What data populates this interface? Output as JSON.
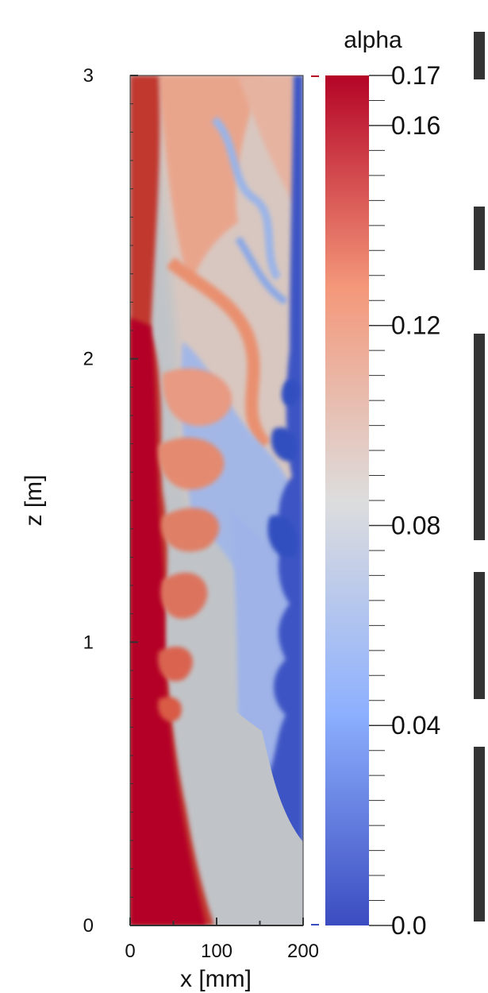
{
  "chart_data": {
    "type": "heatmap",
    "title": "",
    "colorbar": {
      "label": "alpha",
      "range": [
        0.0,
        0.17
      ],
      "ticks": [
        {
          "value": 0.17,
          "label": "0.17"
        },
        {
          "value": 0.16,
          "label": "0.16"
        },
        {
          "value": 0.12,
          "label": "0.12"
        },
        {
          "value": 0.08,
          "label": "0.08"
        },
        {
          "value": 0.04,
          "label": "0.04"
        },
        {
          "value": 0.0,
          "label": "0.0"
        }
      ],
      "colormap": [
        "#3b4cc0",
        "#8db0fe",
        "#dddddd",
        "#f4987a",
        "#b40426"
      ]
    },
    "xaxis": {
      "label": "x [mm]",
      "range": [
        0,
        200
      ],
      "ticks": [
        {
          "value": 0,
          "label": "0"
        },
        {
          "value": 100,
          "label": "100"
        },
        {
          "value": 200,
          "label": "200"
        }
      ]
    },
    "yaxis": {
      "label": "z [m]",
      "range": [
        0,
        3
      ],
      "ticks": [
        {
          "value": 0,
          "label": "0"
        },
        {
          "value": 1,
          "label": "1"
        },
        {
          "value": 2,
          "label": "2"
        },
        {
          "value": 3,
          "label": "3"
        }
      ]
    },
    "field_description": {
      "background_value": 0.085,
      "wall_layer_value": 0.165,
      "low_region_value": 0.01
    }
  }
}
